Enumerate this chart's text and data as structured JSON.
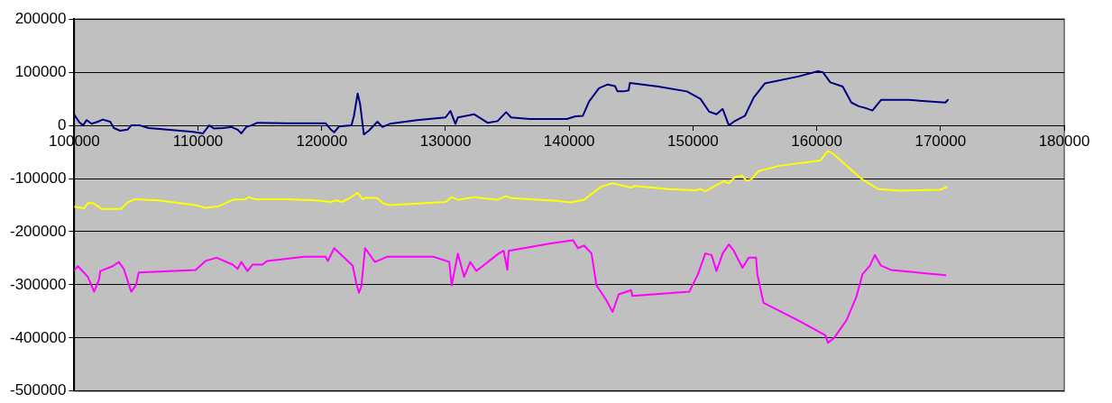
{
  "chart_data": {
    "type": "line",
    "xlim": [
      100000,
      180000
    ],
    "xticks": [
      100000,
      110000,
      120000,
      130000,
      140000,
      150000,
      160000,
      170000,
      180000
    ],
    "ylim": [
      -500000,
      200000
    ],
    "yticks": [
      -500000,
      -400000,
      -300000,
      -200000,
      -100000,
      0,
      100000,
      200000
    ],
    "grid": "y",
    "legend": false,
    "marker": "none",
    "line_style": "solid",
    "series": [
      {
        "color": "#000080",
        "x": [
          100000,
          100400,
          100700,
          101000,
          101400,
          101900,
          102300,
          102900,
          103200,
          103700,
          104300,
          104600,
          105300,
          106000,
          109600,
          110400,
          110900,
          111300,
          112000,
          112700,
          113200,
          113500,
          113900,
          114300,
          114800,
          117300,
          120300,
          120700,
          121000,
          121400,
          122400,
          122600,
          122900,
          123100,
          123400,
          123800,
          124500,
          124900,
          125500,
          127700,
          130000,
          130400,
          130800,
          131000,
          132300,
          133400,
          134200,
          134900,
          135300,
          136800,
          139800,
          140500,
          141100,
          141600,
          142400,
          143100,
          143700,
          143900,
          144400,
          144800,
          144900,
          147200,
          149500,
          150600,
          151300,
          151900,
          152400,
          152900,
          153300,
          154200,
          154900,
          155800,
          158500,
          160100,
          160500,
          161100,
          162100,
          162800,
          163400,
          163900,
          164500,
          165200,
          167400,
          170400,
          170600
        ],
        "values": [
          20000,
          6000,
          0,
          10000,
          3000,
          7000,
          11000,
          7000,
          -5000,
          -10000,
          -8000,
          0,
          0,
          -5000,
          -12000,
          -15000,
          0,
          -6000,
          -5000,
          -3000,
          -8000,
          -15000,
          -3000,
          0,
          5000,
          4000,
          4000,
          -7000,
          -13000,
          -2000,
          0,
          18000,
          60000,
          40000,
          -17000,
          -10000,
          7000,
          -3000,
          3000,
          10000,
          15000,
          27000,
          3000,
          15000,
          21000,
          5000,
          8000,
          25000,
          15000,
          12000,
          12000,
          17000,
          18000,
          45000,
          70000,
          77000,
          74000,
          64000,
          64000,
          66000,
          80000,
          73000,
          64000,
          50000,
          26000,
          21000,
          31000,
          0,
          7000,
          18000,
          52000,
          79000,
          92000,
          102000,
          100000,
          81000,
          73000,
          43000,
          36000,
          33000,
          28000,
          48000,
          48000,
          43000,
          48000
        ]
      },
      {
        "color": "#ffff00",
        "x": [
          100000,
          100800,
          101100,
          101500,
          102200,
          103800,
          104300,
          104900,
          106800,
          109800,
          110600,
          111700,
          112800,
          113800,
          114100,
          114600,
          117300,
          119500,
          120700,
          121200,
          121600,
          122100,
          122900,
          123300,
          123600,
          124500,
          125000,
          125500,
          127800,
          130000,
          130500,
          131000,
          132300,
          134200,
          134900,
          135300,
          139000,
          140100,
          141200,
          142600,
          143500,
          145000,
          145300,
          148000,
          150200,
          150600,
          151000,
          152500,
          152900,
          153400,
          154000,
          154300,
          154700,
          155300,
          157000,
          160300,
          160900,
          161400,
          162900,
          163700,
          165000,
          166700,
          170000,
          170500
        ],
        "values": [
          -153000,
          -156000,
          -146000,
          -146000,
          -157000,
          -157000,
          -145000,
          -139000,
          -141000,
          -150000,
          -155000,
          -152000,
          -140000,
          -139000,
          -135000,
          -139000,
          -139000,
          -141000,
          -144000,
          -141000,
          -144000,
          -139000,
          -127000,
          -139000,
          -136000,
          -137000,
          -147000,
          -150000,
          -147000,
          -144000,
          -135000,
          -140000,
          -135000,
          -140000,
          -133000,
          -137000,
          -142000,
          -145000,
          -140000,
          -115000,
          -109000,
          -117000,
          -114000,
          -120000,
          -122000,
          -120000,
          -124000,
          -105000,
          -109000,
          -97000,
          -95000,
          -104000,
          -102000,
          -86000,
          -76000,
          -66000,
          -48000,
          -55000,
          -86000,
          -102000,
          -120000,
          -123000,
          -121000,
          -116000
        ]
      },
      {
        "color": "#ff00ff",
        "x": [
          100000,
          100300,
          101100,
          101600,
          102000,
          102100,
          103100,
          103600,
          104000,
          104600,
          105000,
          105200,
          109800,
          110600,
          111500,
          112800,
          113200,
          113500,
          114000,
          114400,
          115200,
          115600,
          118600,
          120300,
          120500,
          121000,
          122500,
          122800,
          123000,
          123200,
          123500,
          124300,
          125300,
          129000,
          130300,
          130500,
          131000,
          131500,
          132000,
          132500,
          134300,
          134700,
          135000,
          135100,
          138500,
          140300,
          140700,
          141200,
          141800,
          142200,
          143000,
          143500,
          144000,
          145000,
          145100,
          149700,
          150400,
          151000,
          151500,
          151900,
          152400,
          152900,
          153300,
          154000,
          154500,
          155100,
          155200,
          155700,
          158500,
          160700,
          160900,
          161400,
          162400,
          163200,
          163700,
          164300,
          164700,
          165200,
          166000,
          170400
        ],
        "values": [
          -272000,
          -265000,
          -285000,
          -313000,
          -290000,
          -274000,
          -265000,
          -257000,
          -270000,
          -313000,
          -300000,
          -277000,
          -272000,
          -255000,
          -249000,
          -262000,
          -270000,
          -257000,
          -274000,
          -262000,
          -262000,
          -255000,
          -247000,
          -247000,
          -255000,
          -231000,
          -264000,
          -298000,
          -315000,
          -303000,
          -231000,
          -257000,
          -247000,
          -247000,
          -257000,
          -301000,
          -241000,
          -285000,
          -257000,
          -274000,
          -241000,
          -236000,
          -272000,
          -236000,
          -222000,
          -216000,
          -231000,
          -226000,
          -241000,
          -301000,
          -329000,
          -351000,
          -318000,
          -310000,
          -321000,
          -313000,
          -280000,
          -241000,
          -244000,
          -274000,
          -241000,
          -224000,
          -236000,
          -268000,
          -249000,
          -249000,
          -280000,
          -334000,
          -367000,
          -395000,
          -409000,
          -400000,
          -367000,
          -323000,
          -280000,
          -264000,
          -244000,
          -264000,
          -272000,
          -282000
        ]
      }
    ]
  }
}
